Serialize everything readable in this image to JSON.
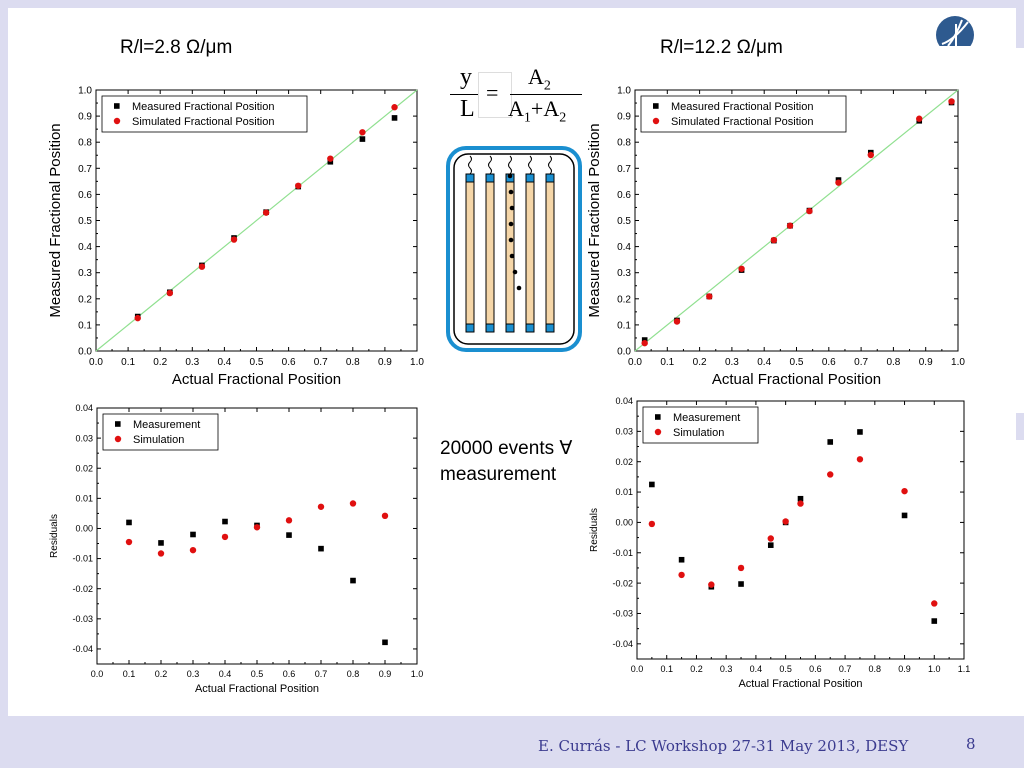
{
  "titles": {
    "left": "R/l=2.8 Ω/μm",
    "right": "R/l=12.2 Ω/μm"
  },
  "formula": {
    "y": "y",
    "L": "L",
    "eq": "=",
    "num": "A",
    "num_sub": "2",
    "den_a": "A",
    "den_a_sub": "1",
    "plus": "+",
    "den_b": "A",
    "den_b_sub": "2"
  },
  "events": {
    "line1": "20000 events ∀",
    "line2": "measurement"
  },
  "footer": {
    "text": "E. Currás -  LC Workshop 27-31 May 2013, DESY",
    "page": "8"
  },
  "colors": {
    "measured": "#000000",
    "simulated": "#e01010",
    "fit_line": "#90e090",
    "footer": "#3b3b8f",
    "logo": "#2e5a8f",
    "detector_blue": "#1a8fd0",
    "wire_tan": "#f5d6a8"
  },
  "chart_data": [
    {
      "id": "top-left",
      "type": "scatter",
      "xlabel": "Actual Fractional Position",
      "ylabel": "Measured Fractional Position",
      "xlim": [
        0,
        1
      ],
      "ylim": [
        0,
        1
      ],
      "xticks": [
        "0.0",
        "0.1",
        "0.2",
        "0.3",
        "0.4",
        "0.5",
        "0.6",
        "0.7",
        "0.8",
        "0.9",
        "1.0"
      ],
      "yticks": [
        "0.0",
        "0.1",
        "0.2",
        "0.3",
        "0.4",
        "0.5",
        "0.6",
        "0.7",
        "0.8",
        "0.9",
        "1.0"
      ],
      "legend_position": "top-left",
      "diagonal": true,
      "series": [
        {
          "name": "Measured Fractional Position",
          "marker": "square",
          "x": [
            0.13,
            0.23,
            0.33,
            0.43,
            0.53,
            0.63,
            0.73,
            0.83,
            0.93
          ],
          "y": [
            0.132,
            0.225,
            0.328,
            0.433,
            0.532,
            0.63,
            0.725,
            0.812,
            0.893
          ]
        },
        {
          "name": "Simulated Fractional Position",
          "marker": "circle",
          "x": [
            0.13,
            0.23,
            0.33,
            0.43,
            0.53,
            0.63,
            0.73,
            0.83,
            0.93
          ],
          "y": [
            0.126,
            0.222,
            0.323,
            0.427,
            0.53,
            0.633,
            0.737,
            0.838,
            0.934
          ]
        }
      ]
    },
    {
      "id": "top-right",
      "type": "scatter",
      "xlabel": "Actual Fractional Position",
      "ylabel": "Measured Fractional Position",
      "xlim": [
        0,
        1
      ],
      "ylim": [
        0,
        1
      ],
      "xticks": [
        "0.0",
        "0.1",
        "0.2",
        "0.3",
        "0.4",
        "0.5",
        "0.6",
        "0.7",
        "0.8",
        "0.9",
        "1.0"
      ],
      "yticks": [
        "0.0",
        "0.1",
        "0.2",
        "0.3",
        "0.4",
        "0.5",
        "0.6",
        "0.7",
        "0.8",
        "0.9",
        "1.0"
      ],
      "legend_position": "top-left",
      "diagonal": true,
      "series": [
        {
          "name": "Measured Fractional Position",
          "marker": "square",
          "x": [
            0.03,
            0.13,
            0.23,
            0.33,
            0.43,
            0.48,
            0.54,
            0.63,
            0.73,
            0.88,
            0.98
          ],
          "y": [
            0.042,
            0.117,
            0.209,
            0.31,
            0.423,
            0.48,
            0.538,
            0.655,
            0.76,
            0.882,
            0.952
          ]
        },
        {
          "name": "Simulated Fractional Position",
          "marker": "circle",
          "x": [
            0.03,
            0.13,
            0.23,
            0.33,
            0.43,
            0.48,
            0.54,
            0.63,
            0.73,
            0.88,
            0.98
          ],
          "y": [
            0.03,
            0.113,
            0.209,
            0.315,
            0.425,
            0.48,
            0.536,
            0.645,
            0.751,
            0.89,
            0.956
          ]
        }
      ]
    },
    {
      "id": "bottom-left",
      "type": "scatter",
      "xlabel": "Actual Fractional Position",
      "ylabel": "Residuals",
      "xlim": [
        0,
        1
      ],
      "ylim": [
        -0.045,
        0.04
      ],
      "xticks": [
        "0.0",
        "0.1",
        "0.2",
        "0.3",
        "0.4",
        "0.5",
        "0.6",
        "0.7",
        "0.8",
        "0.9",
        "1.0"
      ],
      "yticks": [
        "-0.04",
        "-0.03",
        "-0.02",
        "-0.01",
        "0.00",
        "0.01",
        "0.02",
        "0.03",
        "0.04"
      ],
      "legend_position": "top-left",
      "diagonal": false,
      "series": [
        {
          "name": "Measurement",
          "marker": "square",
          "x": [
            0.1,
            0.2,
            0.3,
            0.4,
            0.5,
            0.6,
            0.7,
            0.8,
            0.9
          ],
          "y": [
            0.002,
            -0.0048,
            -0.002,
            0.0023,
            0.001,
            -0.0022,
            -0.0067,
            -0.0173,
            -0.0378
          ]
        },
        {
          "name": "Simulation",
          "marker": "circle",
          "x": [
            0.1,
            0.2,
            0.3,
            0.4,
            0.5,
            0.6,
            0.7,
            0.8,
            0.9
          ],
          "y": [
            -0.0045,
            -0.0083,
            -0.0072,
            -0.0028,
            0.0004,
            0.0027,
            0.0072,
            0.0083,
            0.0042
          ]
        }
      ]
    },
    {
      "id": "bottom-right",
      "type": "scatter",
      "xlabel": "Actual Fractional Position",
      "ylabel": "Residuals",
      "xlim": [
        0,
        1.1
      ],
      "ylim": [
        -0.045,
        0.04
      ],
      "xticks": [
        "0.0",
        "0.1",
        "0.2",
        "0.3",
        "0.4",
        "0.5",
        "0.6",
        "0.7",
        "0.8",
        "0.9",
        "1.0",
        "1.1"
      ],
      "yticks": [
        "-0.04",
        "-0.03",
        "-0.02",
        "-0.01",
        "0.00",
        "0.01",
        "0.02",
        "0.03",
        "0.04"
      ],
      "legend_position": "top-left",
      "diagonal": false,
      "series": [
        {
          "name": "Measurement",
          "marker": "square",
          "x": [
            0.05,
            0.15,
            0.25,
            0.35,
            0.45,
            0.5,
            0.55,
            0.65,
            0.75,
            0.9,
            1.0
          ],
          "y": [
            0.0125,
            -0.0123,
            -0.0212,
            -0.0203,
            -0.0075,
            0.0,
            0.0078,
            0.0265,
            0.0298,
            0.0023,
            -0.0325
          ]
        },
        {
          "name": "Simulation",
          "marker": "circle",
          "x": [
            0.05,
            0.15,
            0.25,
            0.35,
            0.45,
            0.5,
            0.55,
            0.65,
            0.75,
            0.9,
            1.0
          ],
          "y": [
            -0.0005,
            -0.0173,
            -0.0205,
            -0.015,
            -0.0053,
            0.0003,
            0.0062,
            0.0158,
            0.0208,
            0.0103,
            -0.0267
          ]
        }
      ]
    }
  ]
}
